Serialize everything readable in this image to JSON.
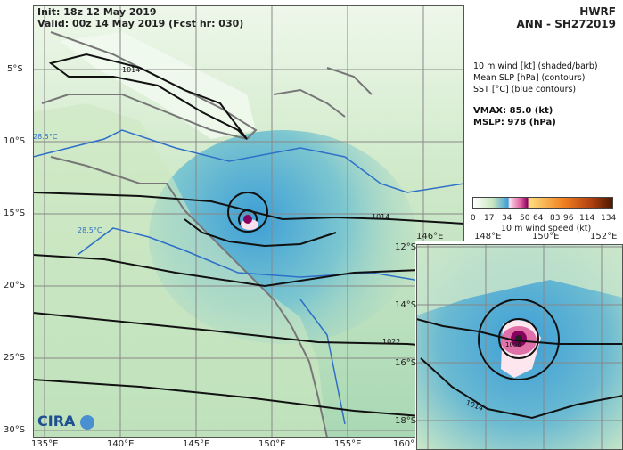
{
  "header": {
    "model": "HWRF",
    "storm": "ANN - SH272019",
    "init": "Init:  18z 12 May 2019",
    "valid": "Valid: 00z 14 May 2019 (Fcst hr: 030)"
  },
  "legend": {
    "line1": "10 m wind [kt] (shaded/barb)",
    "line2": "Mean SLP [hPa] (contours)",
    "line3": "SST [°C] (blue contours)",
    "vmax": "VMAX:  85.0 (kt)",
    "mslp": "MSLP:  978 (hPa)"
  },
  "colorbar": {
    "label": "10 m wind speed (kt)",
    "ticks": [
      "0",
      "17",
      "34",
      "50",
      "64",
      "83",
      "96",
      "114",
      "134"
    ],
    "colors": [
      "#ffffff",
      "#c8e6c0",
      "#3d9fd6",
      "#fde0ee",
      "#e060a0",
      "#8a0060",
      "#ffe080",
      "#f08020",
      "#b04010",
      "#4a1a00"
    ]
  },
  "main_map": {
    "lat_labels": [
      "5°S",
      "10°S",
      "15°S",
      "20°S",
      "25°S",
      "30°S"
    ],
    "lon_labels": [
      "135°E",
      "140°E",
      "145°E",
      "150°E",
      "155°E",
      "160°E"
    ],
    "contour_labels": [
      "1014",
      "1014",
      "1022",
      "28.5°C",
      "28.5°C"
    ]
  },
  "inset_map": {
    "lat_labels": [
      "12°S",
      "14°S",
      "16°S",
      "18°S"
    ],
    "lon_labels": [
      "146°E",
      "148°E",
      "150°E",
      "152°E"
    ],
    "contour_labels": [
      "1014",
      "1006"
    ]
  },
  "logo": {
    "text": "CIRA"
  }
}
